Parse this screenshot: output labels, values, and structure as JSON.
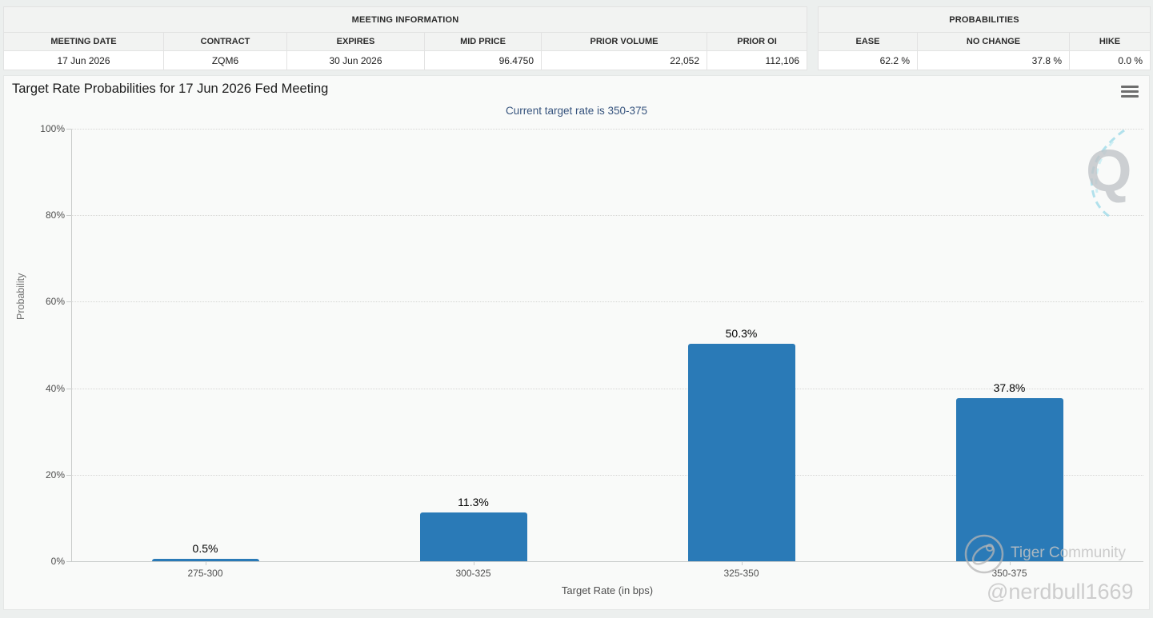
{
  "tables": {
    "meeting": {
      "title": "MEETING INFORMATION",
      "headers": [
        "MEETING DATE",
        "CONTRACT",
        "EXPIRES",
        "MID PRICE",
        "PRIOR VOLUME",
        "PRIOR OI"
      ],
      "row": [
        "17 Jun 2026",
        "ZQM6",
        "30 Jun 2026",
        "96.4750",
        "22,052",
        "112,106"
      ]
    },
    "probabilities": {
      "title": "PROBABILITIES",
      "headers": [
        "EASE",
        "NO CHANGE",
        "HIKE"
      ],
      "row": [
        "62.2 %",
        "37.8 %",
        "0.0 %"
      ]
    }
  },
  "chart": {
    "title": "Target Rate Probabilities for 17 Jun 2026 Fed Meeting",
    "subtitle": "Current target rate is 350-375",
    "menu_icon": "hamburger-menu-icon"
  },
  "chart_data": {
    "type": "bar",
    "categories": [
      "275-300",
      "300-325",
      "325-350",
      "350-375"
    ],
    "values": [
      0.5,
      11.3,
      50.3,
      37.8
    ],
    "bar_labels": [
      "0.5%",
      "11.3%",
      "50.3%",
      "37.8%"
    ],
    "title": "Target Rate Probabilities for 17 Jun 2026 Fed Meeting",
    "subtitle": "Current target rate is 350-375",
    "xlabel": "Target Rate (in bps)",
    "ylabel": "Probability",
    "ylim": [
      0,
      100
    ],
    "ytick_step": 20,
    "ytick_labels": [
      "0%",
      "20%",
      "40%",
      "60%",
      "80%",
      "100%"
    ],
    "grid": "horizontal-dotted",
    "legend": "none",
    "bar_color": "#2a7ab7"
  },
  "watermarks": {
    "q_logo": "Q",
    "community": "Tiger Community",
    "handle": "@nerdbull1669"
  },
  "colors": {
    "bar": "#2a7ab7",
    "subtitle": "#37547e",
    "page_bg": "#ecefee",
    "chart_bg": "#f9faf9",
    "watermark_teal": "#9fdbe8"
  }
}
